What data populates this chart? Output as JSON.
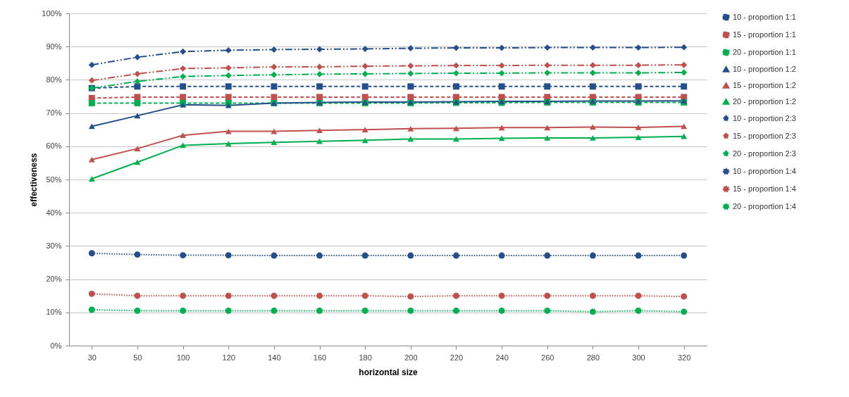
{
  "chart_data": {
    "type": "line",
    "xlabel": "horizontal size",
    "ylabel": "effectiveness",
    "categories": [
      "30",
      "50",
      "100",
      "120",
      "140",
      "160",
      "180",
      "200",
      "220",
      "240",
      "260",
      "280",
      "300",
      "320"
    ],
    "ylim": [
      0,
      100
    ],
    "yticks": [
      {
        "value": 0,
        "label": "0%"
      },
      {
        "value": 10,
        "label": "10%"
      },
      {
        "value": 20,
        "label": "20%"
      },
      {
        "value": 30,
        "label": "30%"
      },
      {
        "value": 40,
        "label": "40%"
      },
      {
        "value": 50,
        "label": "50%"
      },
      {
        "value": 60,
        "label": "60%"
      },
      {
        "value": 70,
        "label": "70%"
      },
      {
        "value": 80,
        "label": "80%"
      },
      {
        "value": 90,
        "label": "90%"
      },
      {
        "value": 100,
        "label": "100%"
      }
    ],
    "grid": "y",
    "legend": "right",
    "series": [
      {
        "name": "10 - proportion 1:1",
        "color": "#254f8c",
        "line_style": "dashed",
        "marker": "square",
        "values": [
          77.5,
          78,
          78,
          78,
          78,
          78,
          78,
          78,
          78,
          78,
          78,
          78,
          78,
          78
        ]
      },
      {
        "name": "15 - proportion 1:1",
        "color": "#c0504d",
        "line_style": "dashed",
        "marker": "square",
        "values": [
          74.5,
          74.8,
          74.8,
          74.8,
          74.8,
          74.8,
          74.8,
          74.8,
          74.8,
          74.8,
          74.8,
          74.8,
          74.8,
          74.8
        ]
      },
      {
        "name": "20 - proportion 1:1",
        "color": "#00b050",
        "line_style": "dashed",
        "marker": "square",
        "values": [
          73,
          73,
          73,
          73,
          73,
          73,
          73,
          73,
          73.1,
          73.1,
          73.2,
          73.2,
          73.2,
          73.2
        ]
      },
      {
        "name": "10 - proportion 1:2",
        "color": "#254f8c",
        "line_style": "solid",
        "marker": "triangle",
        "values": [
          66,
          69.2,
          72.5,
          72.3,
          73,
          73.2,
          73.3,
          73.3,
          73.4,
          73.5,
          73.5,
          73.6,
          73.6,
          73.7
        ]
      },
      {
        "name": "15 - proportion 1:2",
        "color": "#c0504d",
        "line_style": "solid",
        "marker": "triangle",
        "values": [
          56,
          59.3,
          63.3,
          64.5,
          64.5,
          64.8,
          65,
          65.3,
          65.4,
          65.6,
          65.6,
          65.8,
          65.7,
          66
        ]
      },
      {
        "name": "20 - proportion 1:2",
        "color": "#00b050",
        "line_style": "solid",
        "marker": "triangle",
        "values": [
          50.2,
          55.2,
          60.3,
          60.8,
          61.2,
          61.5,
          61.8,
          62.2,
          62.2,
          62.4,
          62.5,
          62.5,
          62.7,
          63
        ]
      },
      {
        "name": "10 - proportion 2:3",
        "color": "#254f8c",
        "line_style": "dashdot",
        "marker": "diamond",
        "values": [
          84.5,
          86.8,
          88.5,
          88.9,
          89.1,
          89.2,
          89.3,
          89.5,
          89.6,
          89.6,
          89.7,
          89.7,
          89.7,
          89.8
        ]
      },
      {
        "name": "15 - proportion 2:3",
        "color": "#c0504d",
        "line_style": "dashdot",
        "marker": "diamond",
        "values": [
          79.8,
          81.8,
          83.4,
          83.6,
          83.9,
          83.9,
          84.1,
          84.2,
          84.3,
          84.3,
          84.4,
          84.4,
          84.4,
          84.5
        ]
      },
      {
        "name": "20 - proportion 2:3",
        "color": "#00b050",
        "line_style": "dashdot",
        "marker": "diamond",
        "values": [
          77.5,
          79.5,
          81,
          81.3,
          81.5,
          81.7,
          81.8,
          81.9,
          82,
          82,
          82.1,
          82.1,
          82.1,
          82.2
        ]
      },
      {
        "name": "10 - proportion 1:4",
        "color": "#254f8c",
        "line_style": "dotted",
        "marker": "circle",
        "values": [
          27.8,
          27.4,
          27.2,
          27.2,
          27.1,
          27.1,
          27.1,
          27.1,
          27.1,
          27.1,
          27.1,
          27.1,
          27.1,
          27.1
        ]
      },
      {
        "name": "15 - proportion 1:4",
        "color": "#c0504d",
        "line_style": "dotted",
        "marker": "circle",
        "values": [
          15.6,
          15,
          15,
          15,
          15,
          15,
          15,
          14.8,
          15,
          15,
          15,
          15,
          15,
          14.8
        ]
      },
      {
        "name": "20 - proportion 1:4",
        "color": "#00b050",
        "line_style": "dotted",
        "marker": "circle",
        "values": [
          10.8,
          10.5,
          10.5,
          10.5,
          10.5,
          10.5,
          10.5,
          10.5,
          10.5,
          10.5,
          10.5,
          10.2,
          10.5,
          10.2
        ]
      }
    ]
  }
}
